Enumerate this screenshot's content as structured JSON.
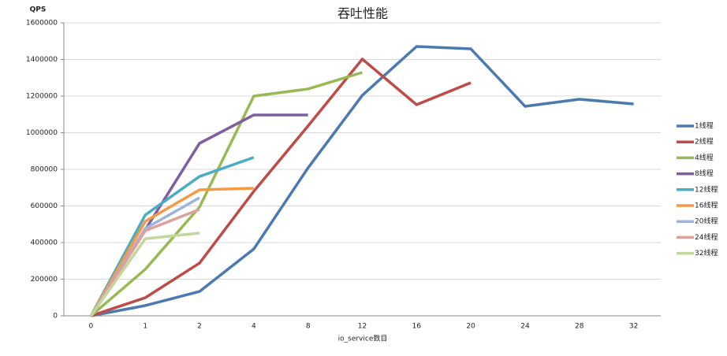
{
  "chart_data": {
    "type": "line",
    "title": "吞吐性能",
    "y_label": "QPS",
    "x_label": "io_service数目",
    "categories": [
      "0",
      "1",
      "2",
      "4",
      "8",
      "12",
      "16",
      "20",
      "24",
      "28",
      "32"
    ],
    "ylim": [
      0,
      1600000
    ],
    "yticks": [
      0,
      200000,
      400000,
      600000,
      800000,
      1000000,
      1200000,
      1400000,
      1600000
    ],
    "grid": true,
    "legend": "right",
    "series": [
      {
        "name": "1线程",
        "color": "#4a7ab0",
        "values": [
          0,
          56000,
          133000,
          365000,
          808000,
          1204000,
          1471000,
          1458000,
          1144000,
          1183000,
          1157000
        ]
      },
      {
        "name": "2线程",
        "color": "#bf4b48",
        "values": [
          0,
          99000,
          288000,
          680000,
          1037000,
          1402000,
          1153000,
          1273000,
          null,
          null,
          null
        ]
      },
      {
        "name": "4线程",
        "color": "#98b954",
        "values": [
          0,
          254000,
          594000,
          1200000,
          1239000,
          1329000,
          null,
          null,
          null,
          null,
          null
        ]
      },
      {
        "name": "8线程",
        "color": "#7d5fa0",
        "values": [
          0,
          470000,
          942000,
          1097000,
          1097000,
          null,
          null,
          null,
          null,
          null,
          null
        ]
      },
      {
        "name": "12线程",
        "color": "#4aacc5",
        "values": [
          0,
          551000,
          761000,
          865000,
          null,
          null,
          null,
          null,
          null,
          null,
          null
        ]
      },
      {
        "name": "16线程",
        "color": "#f59a43",
        "values": [
          0,
          516000,
          688000,
          697000,
          null,
          null,
          null,
          null,
          null,
          null,
          null
        ]
      },
      {
        "name": "20线程",
        "color": "#9fb3d8",
        "values": [
          0,
          477000,
          645000,
          null,
          null,
          null,
          null,
          null,
          null,
          null,
          null
        ]
      },
      {
        "name": "24线程",
        "color": "#dea09f",
        "values": [
          0,
          465000,
          581000,
          null,
          null,
          null,
          null,
          null,
          null,
          null,
          null
        ]
      },
      {
        "name": "32线程",
        "color": "#c3d69b",
        "values": [
          0,
          421000,
          452000,
          null,
          null,
          null,
          null,
          null,
          null,
          null,
          null
        ]
      }
    ]
  }
}
